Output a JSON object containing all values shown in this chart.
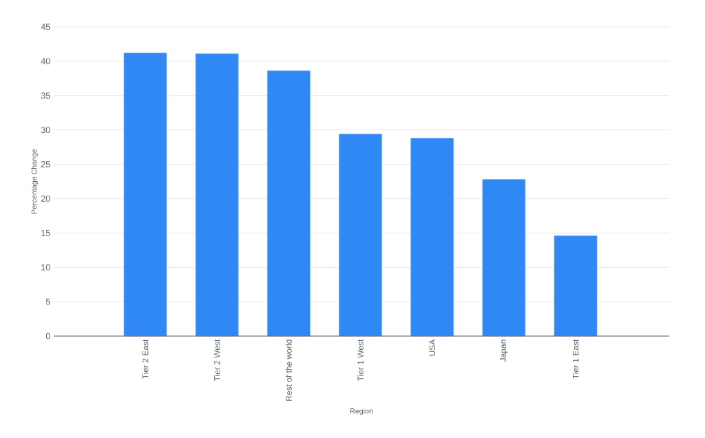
{
  "chart_data": {
    "type": "bar",
    "xlabel": "Region",
    "ylabel": "Percentage Change",
    "categories": [
      "Tier 2 East",
      "Tier 2 West",
      "Rest of the world",
      "Tier 1 West",
      "USA",
      "Japan",
      "Tier 1 East"
    ],
    "values": [
      41.2,
      41.1,
      38.6,
      29.4,
      28.8,
      22.8,
      14.6
    ],
    "color": "#3088f4",
    "ylim": [
      0,
      45
    ],
    "yticks": [
      0,
      5,
      10,
      15,
      20,
      25,
      30,
      35,
      40,
      45
    ],
    "grid": "y"
  }
}
